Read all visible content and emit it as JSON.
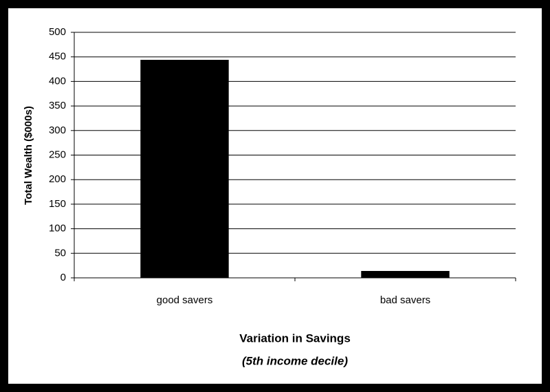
{
  "chart_data": {
    "type": "bar",
    "categories": [
      "good savers",
      "bad savers"
    ],
    "values": [
      444,
      14
    ],
    "color": "#000000",
    "ylim": [
      0,
      500
    ],
    "yticks": [
      0,
      50,
      100,
      150,
      200,
      250,
      300,
      350,
      400,
      450,
      500
    ],
    "grid": true,
    "y_label": "Total Wealth ($000s)",
    "x_label": "Variation in Savings",
    "x_sublabel": "(5th income decile)"
  }
}
